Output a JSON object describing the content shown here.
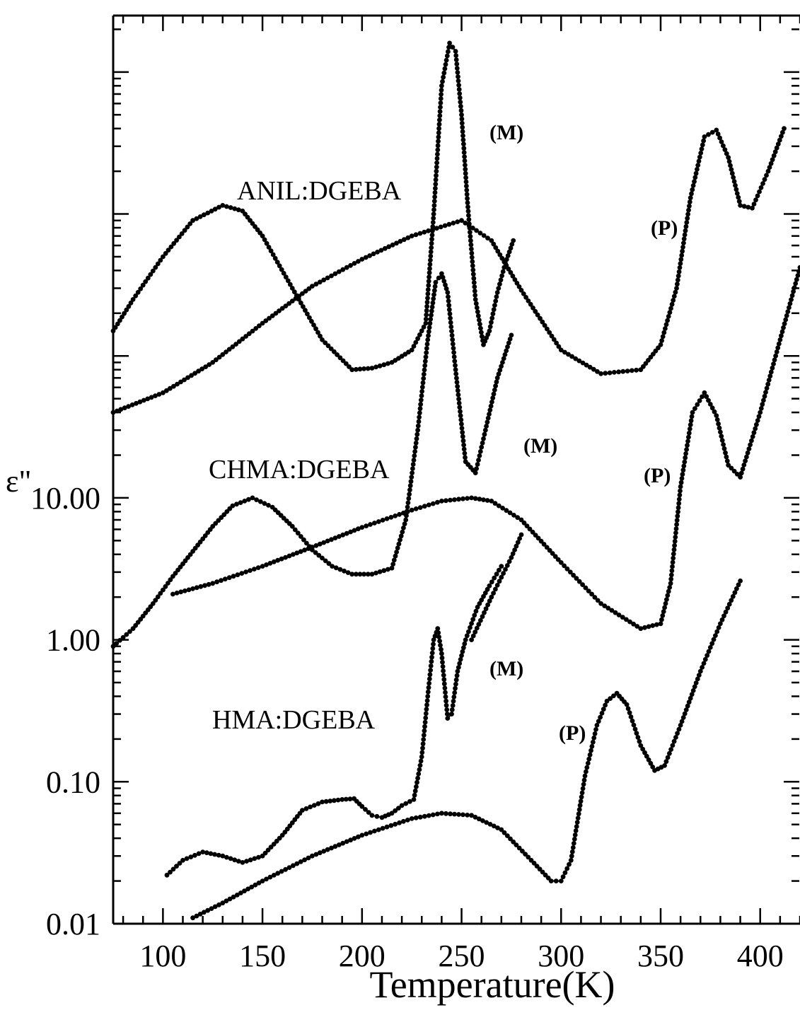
{
  "chart_data": {
    "type": "scatter",
    "xlabel": "Temperature(K)",
    "ylabel": "ε\"",
    "x_scale": "linear",
    "y_scale": "log",
    "xlim": [
      75,
      420
    ],
    "x_ticks": [
      100,
      150,
      200,
      250,
      300,
      350,
      400
    ],
    "x_tick_labels": [
      "100",
      "150",
      "200",
      "250",
      "300",
      "350",
      "400"
    ],
    "y_tick_labels": [
      {
        "value": 0.01,
        "label": "0.01"
      },
      {
        "value": 0.1,
        "label": "0.10"
      },
      {
        "value": 1,
        "label": "1.00"
      },
      {
        "value": 10,
        "label": "10.00"
      }
    ],
    "ylim_visual": [
      0.01,
      25000
    ],
    "annotations": [
      {
        "text": "ANIL:DGEBA",
        "size": "large"
      },
      {
        "text": "CHMA:DGEBA",
        "size": "large"
      },
      {
        "text": "HMA:DGEBA",
        "size": "large"
      },
      {
        "text": "(M)",
        "size": "small",
        "group": "ANIL"
      },
      {
        "text": "(P)",
        "size": "small",
        "group": "ANIL"
      },
      {
        "text": "(M)",
        "size": "small",
        "group": "CHMA"
      },
      {
        "text": "(P)",
        "size": "small",
        "group": "CHMA"
      },
      {
        "text": "(M)",
        "size": "small",
        "group": "HMA"
      },
      {
        "text": "(P)",
        "size": "small",
        "group": "HMA"
      }
    ],
    "series": [
      {
        "group": "ANIL",
        "x": [
          75,
          85,
          100,
          115,
          130,
          140,
          150,
          165,
          180,
          195,
          205,
          215,
          225,
          232,
          236,
          240,
          244,
          247,
          250,
          253,
          257,
          261,
          264,
          268,
          272,
          276
        ],
        "y": [
          150,
          250,
          500,
          900,
          1150,
          1050,
          700,
          300,
          130,
          80,
          82,
          90,
          110,
          170,
          1000,
          8000,
          16000,
          14000,
          5000,
          1200,
          250,
          120,
          150,
          280,
          450,
          650
        ]
      },
      {
        "group": "ANIL",
        "x": [
          75,
          100,
          125,
          150,
          175,
          200,
          225,
          250,
          265,
          280,
          300,
          320,
          340,
          350,
          358,
          365,
          372,
          378,
          384,
          390,
          396,
          404,
          412
        ],
        "y": [
          40,
          55,
          90,
          170,
          310,
          480,
          700,
          900,
          650,
          290,
          110,
          75,
          80,
          120,
          300,
          1300,
          3500,
          3900,
          2500,
          1150,
          1100,
          2000,
          4000
        ]
      },
      {
        "group": "CHMA",
        "x": [
          75,
          85,
          95,
          105,
          115,
          125,
          135,
          145,
          155,
          165,
          175,
          185,
          195,
          205,
          215,
          222,
          228,
          233,
          237,
          240,
          243,
          247,
          252,
          257,
          262,
          268,
          275
        ],
        "y": [
          0.9,
          1.2,
          1.8,
          2.8,
          4.2,
          6.3,
          8.8,
          10,
          8.6,
          6.3,
          4.3,
          3.3,
          2.9,
          2.9,
          3.2,
          7,
          30,
          130,
          330,
          380,
          280,
          80,
          18,
          15,
          30,
          70,
          140
        ]
      },
      {
        "group": "CHMA",
        "x": [
          105,
          125,
          150,
          175,
          200,
          225,
          240,
          255,
          265,
          280,
          300,
          320,
          340,
          350,
          355,
          360,
          366,
          372,
          378,
          384,
          390,
          400,
          410,
          420
        ],
        "y": [
          2.1,
          2.5,
          3.3,
          4.5,
          6.2,
          8.2,
          9.5,
          10,
          9.5,
          7,
          3.5,
          1.8,
          1.2,
          1.3,
          2.5,
          12,
          40,
          55,
          38,
          17,
          14,
          40,
          130,
          420
        ]
      },
      {
        "group": "CHMA",
        "x": [
          255,
          265,
          275,
          280
        ],
        "y": [
          1.0,
          2.0,
          3.8,
          5.5
        ]
      },
      {
        "group": "HMA",
        "x": [
          102,
          110,
          120,
          130,
          140,
          150,
          160,
          170,
          180,
          190,
          196,
          200,
          205,
          210,
          215,
          220,
          226,
          230,
          233,
          236,
          238,
          240,
          243,
          245,
          248,
          252,
          258,
          264,
          270
        ],
        "y": [
          0.022,
          0.028,
          0.032,
          0.03,
          0.027,
          0.03,
          0.042,
          0.063,
          0.072,
          0.075,
          0.076,
          0.067,
          0.058,
          0.056,
          0.06,
          0.068,
          0.075,
          0.15,
          0.4,
          1.0,
          1.2,
          0.8,
          0.28,
          0.3,
          0.6,
          1.0,
          1.7,
          2.4,
          3.3
        ]
      },
      {
        "group": "HMA",
        "x": [
          115,
          130,
          150,
          175,
          200,
          225,
          240,
          255,
          270,
          285,
          295,
          300,
          305,
          312,
          318,
          323,
          328,
          333,
          340,
          347,
          352,
          360,
          370,
          380,
          390
        ],
        "y": [
          0.011,
          0.014,
          0.02,
          0.03,
          0.042,
          0.055,
          0.06,
          0.058,
          0.046,
          0.028,
          0.02,
          0.02,
          0.028,
          0.11,
          0.25,
          0.37,
          0.42,
          0.35,
          0.18,
          0.12,
          0.13,
          0.25,
          0.6,
          1.3,
          2.6
        ]
      }
    ]
  }
}
